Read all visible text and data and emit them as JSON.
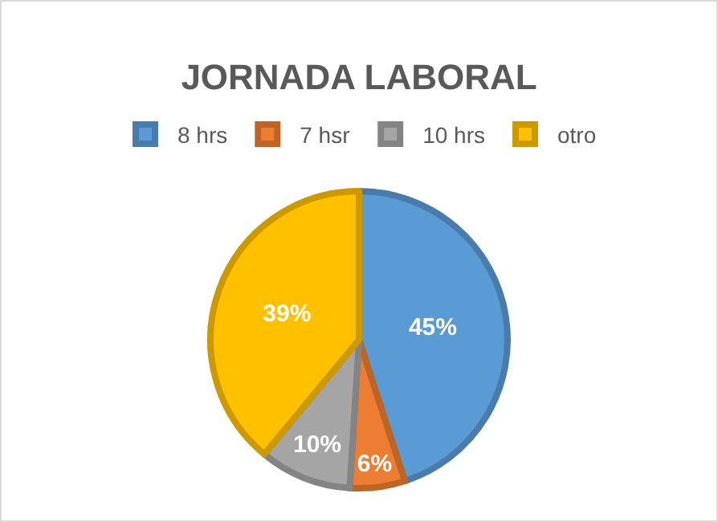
{
  "chart_data": {
    "type": "pie",
    "title": "JORNADA LABORAL",
    "categories": [
      "8 hrs",
      "7 hsr",
      "10 hrs",
      "otro"
    ],
    "values": [
      45,
      6,
      10,
      39
    ],
    "colors": [
      "#5b9bd5",
      "#ed7d31",
      "#a5a5a5",
      "#ffc000"
    ],
    "value_labels": [
      "45%",
      "6%",
      "10%",
      "39%"
    ],
    "legend": "top"
  }
}
